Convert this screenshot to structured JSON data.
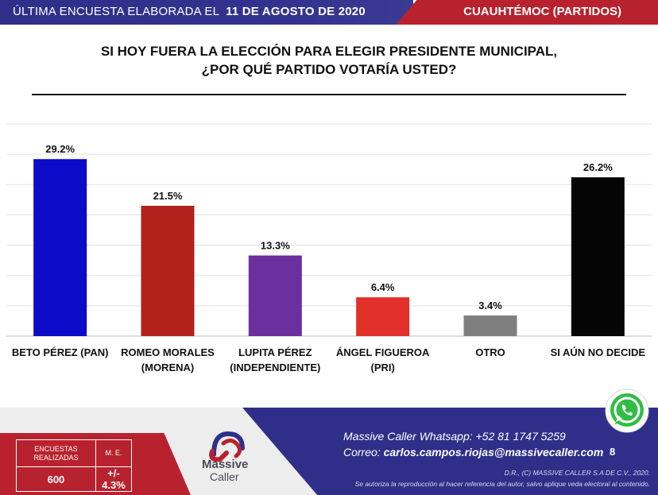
{
  "header": {
    "left_text": "ÚLTIMA ENCUESTA ELABORADA EL",
    "date": "11 DE AGOSTO DE 2020",
    "right_text": "CUAUHTÉMOC (PARTIDOS)"
  },
  "question": {
    "line1": "SI HOY FUERA LA ELECCIÓN PARA ELEGIR PRESIDENTE MUNICIPAL,",
    "line2": "¿POR QUÉ PARTIDO VOTARÍA USTED?"
  },
  "chart_data": {
    "type": "bar",
    "title": "",
    "xlabel": "",
    "ylabel": "",
    "ylim": [
      0,
      35
    ],
    "grid": true,
    "categories": [
      [
        "BETO PÉREZ (PAN)"
      ],
      [
        "ROMEO MORALES",
        "(MORENA)"
      ],
      [
        "LUPITA PÉREZ",
        "(INDEPENDIENTE)"
      ],
      [
        "ÁNGEL FIGUEROA",
        "(PRI)"
      ],
      [
        "OTRO"
      ],
      [
        "SI AÚN NO DECIDE"
      ]
    ],
    "values": [
      29.2,
      21.5,
      13.3,
      6.4,
      3.4,
      26.2
    ],
    "value_labels": [
      "29.2%",
      "21.5%",
      "13.3%",
      "6.4%",
      "3.4%",
      "26.2%"
    ],
    "colors": [
      "#0b0bc8",
      "#b1221b",
      "#6b2f9e",
      "#e2302a",
      "#7f7f7f",
      "#050505"
    ]
  },
  "footer": {
    "stats": {
      "surveys_label": "ENCUESTAS REALIZADAS",
      "surveys_value": "600",
      "me_label": "M. E.",
      "me_value": "+/- 4.3%"
    },
    "logo_line1": "Massive",
    "logo_line2": "Caller",
    "contact_whatsapp": "Massive Caller Whatsapp:  +52 81 1747 5259",
    "contact_email_label": "Correo: ",
    "contact_email": "carlos.campos.riojas@massivecaller.com",
    "page_number": "8",
    "legal_line1": "D.R., (C) MASSIVE CALLER S.A DE C.V., 2020.",
    "legal_line2": "Se autoriza la reproducción al hacer referencia del autor, salvo aplique veda electoral al contenido."
  },
  "icons": {
    "whatsapp": "whatsapp-icon",
    "logo": "massive-caller-logo-icon"
  }
}
